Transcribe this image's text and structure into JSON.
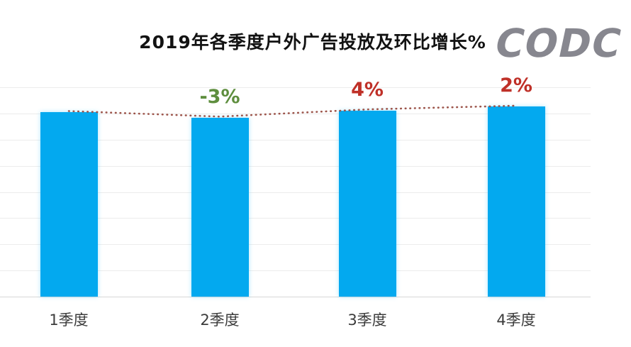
{
  "logo": "CODC",
  "chart_data": {
    "type": "bar",
    "title": "2019年各季度户外广告投放及环比增长%",
    "categories": [
      "1季度",
      "2季度",
      "3季度",
      "4季度"
    ],
    "series": [
      {
        "role": "bars",
        "values_relative_q1_100": [
          100,
          97,
          100.9,
          102.9
        ]
      },
      {
        "role": "growth-line",
        "values_percent": [
          null,
          -3,
          4,
          2
        ]
      }
    ],
    "growth_labels": [
      {
        "text": "",
        "color": ""
      },
      {
        "text": "-3%",
        "color": "#5e8e3e"
      },
      {
        "text": "4%",
        "color": "#bf3028"
      },
      {
        "text": "2%",
        "color": "#bf3028"
      }
    ],
    "note": "y-axis has no tick labels; bar values estimated relative to Q1=100 using the labeled growth percentages",
    "colors": {
      "bar": "#03a9ef",
      "dotted_line": "#9c544a",
      "growth_positive": "#bf3028",
      "growth_negative": "#5e8e3e",
      "gridline": "#ececec",
      "axis_text": "#3c3c3c",
      "title_text": "#121212",
      "logo_gray": "#87878f"
    },
    "legend": "none",
    "gridlines": true
  }
}
